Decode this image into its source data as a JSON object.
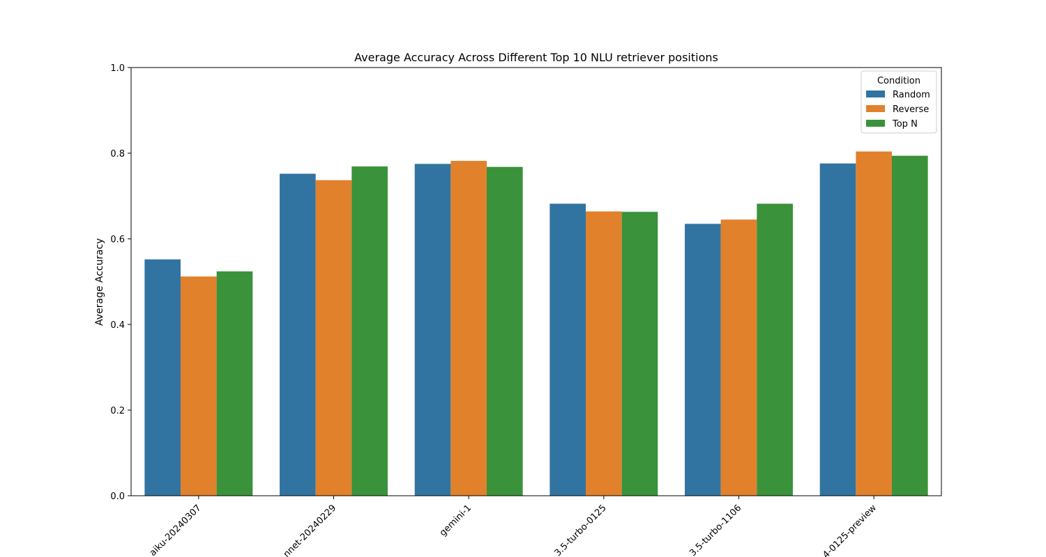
{
  "chart_data": {
    "type": "bar",
    "title": "Average Accuracy Across Different Top 10 NLU retriever positions",
    "xlabel": "",
    "ylabel": "Average Accuracy",
    "ylim": [
      0,
      1.0
    ],
    "yticks": [
      "0.0",
      "0.2",
      "0.4",
      "0.6",
      "0.8",
      "1.0"
    ],
    "categories": [
      "aiku-20240307",
      "nnet-20240229",
      "gemini-1",
      "3.5-turbo-0125",
      "3.5-turbo-1106",
      "4-0125-preview"
    ],
    "legend": {
      "title": "Condition",
      "placement": "top-right"
    },
    "series": [
      {
        "name": "Random",
        "color": "#3274a1",
        "values": [
          0.552,
          0.752,
          0.775,
          0.682,
          0.635,
          0.776
        ]
      },
      {
        "name": "Reverse",
        "color": "#e1812c",
        "values": [
          0.512,
          0.737,
          0.782,
          0.664,
          0.645,
          0.804
        ]
      },
      {
        "name": "Top N",
        "color": "#3a923a",
        "values": [
          0.524,
          0.769,
          0.768,
          0.663,
          0.682,
          0.794
        ]
      }
    ],
    "grid": false
  }
}
